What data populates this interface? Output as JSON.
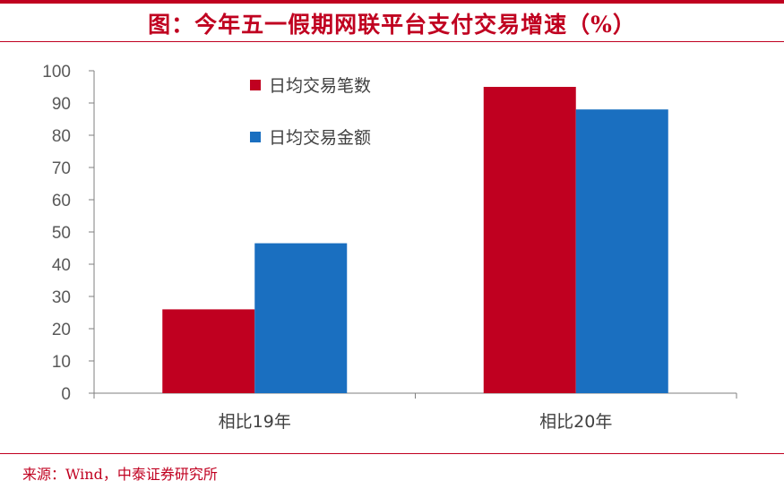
{
  "title": "图：今年五一假期网联平台支付交易增速（%）",
  "source": "来源：Wind，中泰证券研究所",
  "colors": {
    "accent": "#c00020",
    "series1": "#c00020",
    "series2": "#1a6fc0"
  },
  "chart_data": {
    "type": "bar",
    "title": "图：今年五一假期网联平台支付交易增速（%）",
    "categories": [
      "相比19年",
      "相比20年"
    ],
    "series": [
      {
        "name": "日均交易笔数",
        "values": [
          26,
          95
        ]
      },
      {
        "name": "日均交易金额",
        "values": [
          46.5,
          88
        ]
      }
    ],
    "ylim": [
      0,
      100
    ],
    "yticks": [
      0,
      10,
      20,
      30,
      40,
      50,
      60,
      70,
      80,
      90,
      100
    ],
    "grid": false,
    "legend": "top-left"
  }
}
